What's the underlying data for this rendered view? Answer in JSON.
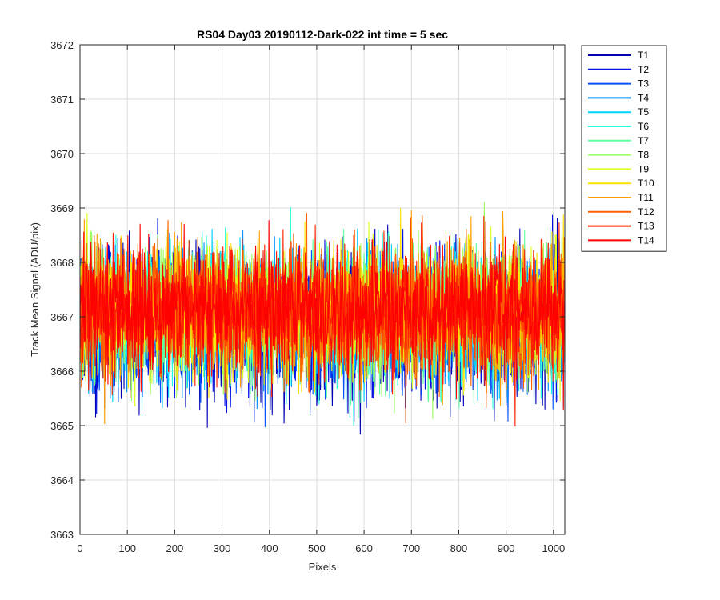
{
  "chart_data": {
    "type": "line",
    "title": "RS04 Day03 20190112-Dark-022 int time = 5 sec",
    "xlabel": "Pixels",
    "ylabel": "Track Mean Signal (ADU/pix)",
    "xlim": [
      0,
      1024
    ],
    "ylim": [
      3663,
      3672
    ],
    "xticks": [
      0,
      100,
      200,
      300,
      400,
      500,
      600,
      700,
      800,
      900,
      1000
    ],
    "yticks": [
      3663,
      3664,
      3665,
      3666,
      3667,
      3668,
      3669,
      3670,
      3671,
      3672
    ],
    "grid": true,
    "legend_position": "outside-top-right",
    "x_range": [
      1,
      1024
    ],
    "series": [
      {
        "name": "T1",
        "color": "#0000b4",
        "center": 3666.8,
        "spread": 1.05,
        "noise_seed": 11
      },
      {
        "name": "T2",
        "color": "#0010e6",
        "center": 3666.9,
        "spread": 1.0,
        "noise_seed": 23
      },
      {
        "name": "T3",
        "color": "#0050ff",
        "center": 3666.9,
        "spread": 1.0,
        "noise_seed": 37
      },
      {
        "name": "T4",
        "color": "#0090ff",
        "center": 3667.0,
        "spread": 0.95,
        "noise_seed": 41
      },
      {
        "name": "T5",
        "color": "#00d0ff",
        "center": 3667.0,
        "spread": 0.95,
        "noise_seed": 53
      },
      {
        "name": "T6",
        "color": "#20ffdf",
        "center": 3667.0,
        "spread": 0.95,
        "noise_seed": 67
      },
      {
        "name": "T7",
        "color": "#60ff9f",
        "center": 3667.0,
        "spread": 0.95,
        "noise_seed": 71
      },
      {
        "name": "T8",
        "color": "#9fff60",
        "center": 3667.1,
        "spread": 0.95,
        "noise_seed": 83
      },
      {
        "name": "T9",
        "color": "#dfff20",
        "center": 3667.1,
        "spread": 0.95,
        "noise_seed": 97
      },
      {
        "name": "T10",
        "color": "#ffe000",
        "center": 3667.1,
        "spread": 0.95,
        "noise_seed": 101
      },
      {
        "name": "T11",
        "color": "#ffa000",
        "center": 3667.1,
        "spread": 0.95,
        "noise_seed": 113
      },
      {
        "name": "T12",
        "color": "#ff6000",
        "center": 3667.1,
        "spread": 0.95,
        "noise_seed": 127
      },
      {
        "name": "T13",
        "color": "#ff2000",
        "center": 3667.1,
        "spread": 0.95,
        "noise_seed": 131
      },
      {
        "name": "T14",
        "color": "#ff0000",
        "center": 3667.1,
        "spread": 0.9,
        "noise_seed": 149
      }
    ]
  }
}
